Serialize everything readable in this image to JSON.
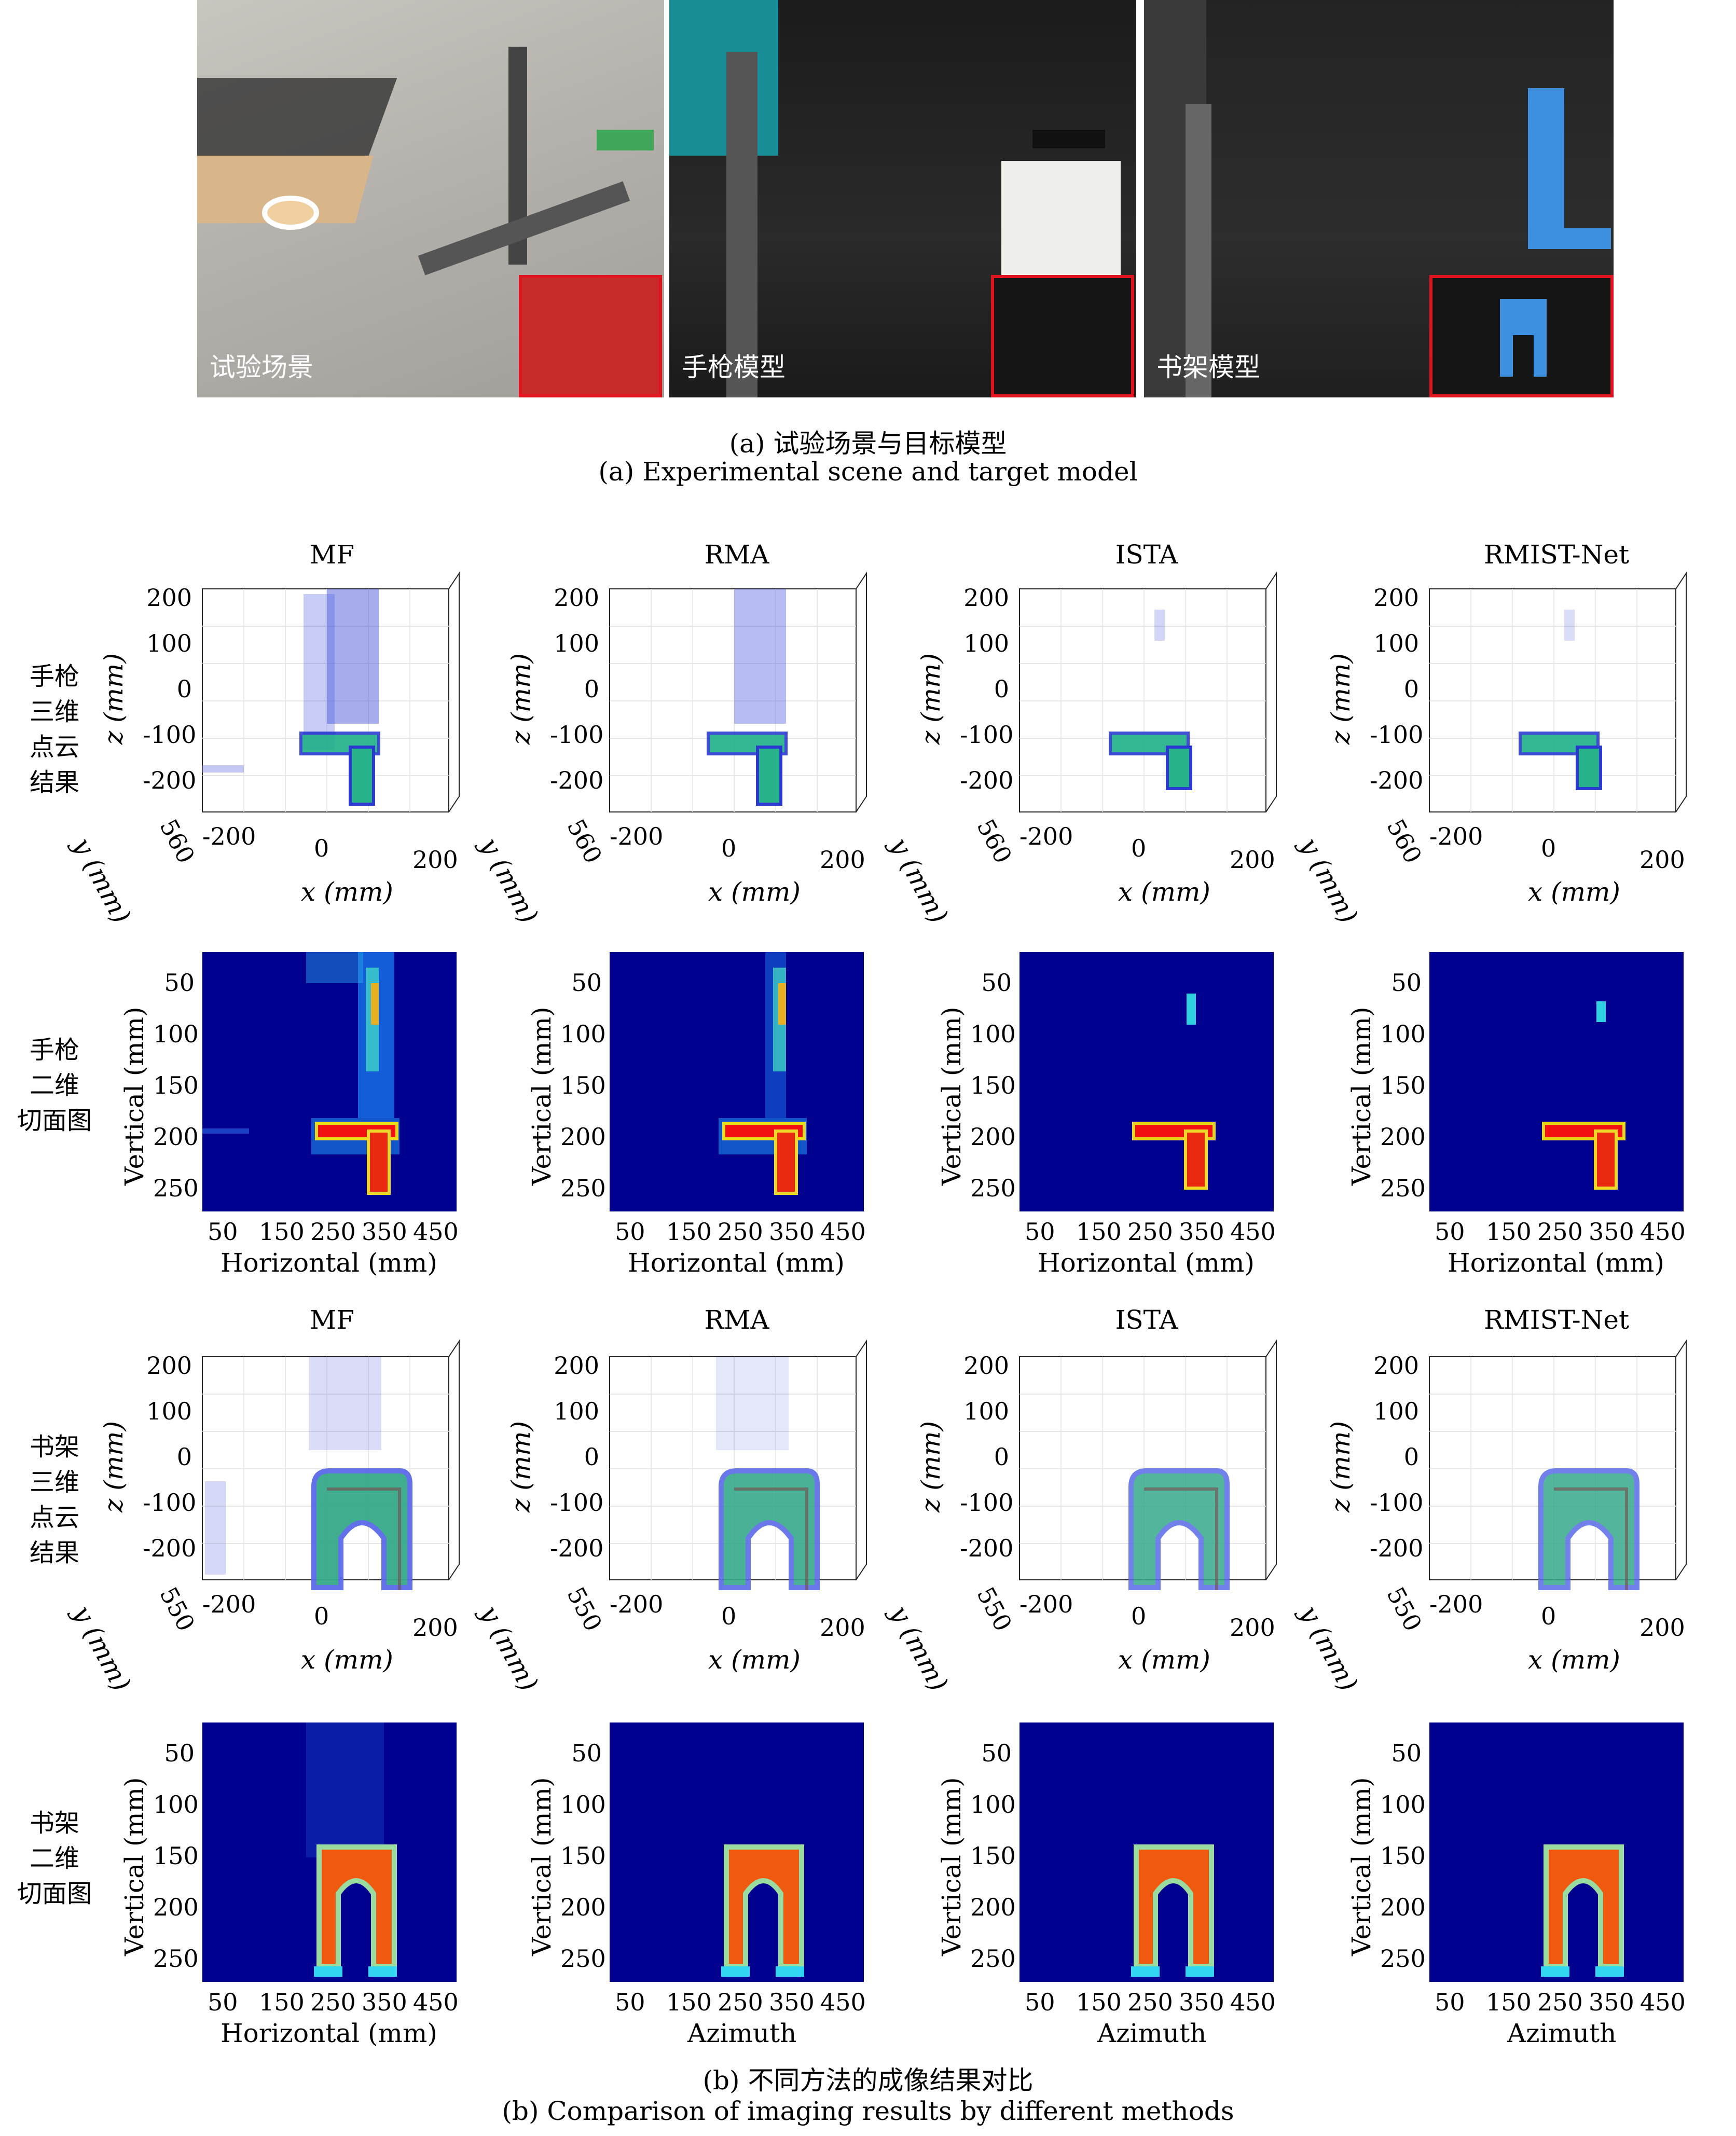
{
  "photos": [
    {
      "label": "试验场景"
    },
    {
      "label": "手枪模型"
    },
    {
      "label": "书架模型"
    }
  ],
  "caption_a": {
    "zh": "(a) 试验场景与目标模型",
    "en": "(a) Experimental scene and target model"
  },
  "caption_b": {
    "zh": "(b) 不同方法的成像结果对比",
    "en": "(b) Comparison of imaging results by different methods"
  },
  "methods": [
    "MF",
    "RMA",
    "ISTA",
    "RMIST-Net"
  ],
  "rows": [
    {
      "label": [
        "手枪",
        "三维",
        "点云",
        "结果"
      ]
    },
    {
      "label": [
        "手枪",
        "二维",
        "切面图"
      ]
    },
    {
      "label": [
        "书架",
        "三维",
        "点云",
        "结果"
      ]
    },
    {
      "label": [
        "书架",
        "二维",
        "切面图"
      ]
    }
  ],
  "axes3d": {
    "z_label": "z (mm)",
    "x_label": "x (mm)",
    "y_label": "y (mm)",
    "z_ticks": [
      "200",
      "100",
      "0",
      "-100",
      "-200"
    ],
    "x_ticks": [
      "-200",
      "0",
      "200"
    ],
    "y_tick_gun": "560",
    "y_tick_shelf": "550"
  },
  "axes2d": {
    "ylabel": "Vertical (mm)",
    "y_ticks": [
      "50",
      "100",
      "150",
      "200",
      "250"
    ],
    "x_ticks": [
      "50",
      "150",
      "250",
      "350",
      "450"
    ],
    "xlabels_gun": [
      "Horizontal (mm)",
      "Horizontal (mm)",
      "Horizontal (mm)",
      "Horizontal (mm)"
    ],
    "xlabels_shelf": [
      "Horizontal (mm)",
      "Azimuth",
      "Azimuth",
      "Azimuth"
    ]
  },
  "colors": {
    "inset_border": "#e0141e",
    "heatmap_bg": "#00008f"
  }
}
